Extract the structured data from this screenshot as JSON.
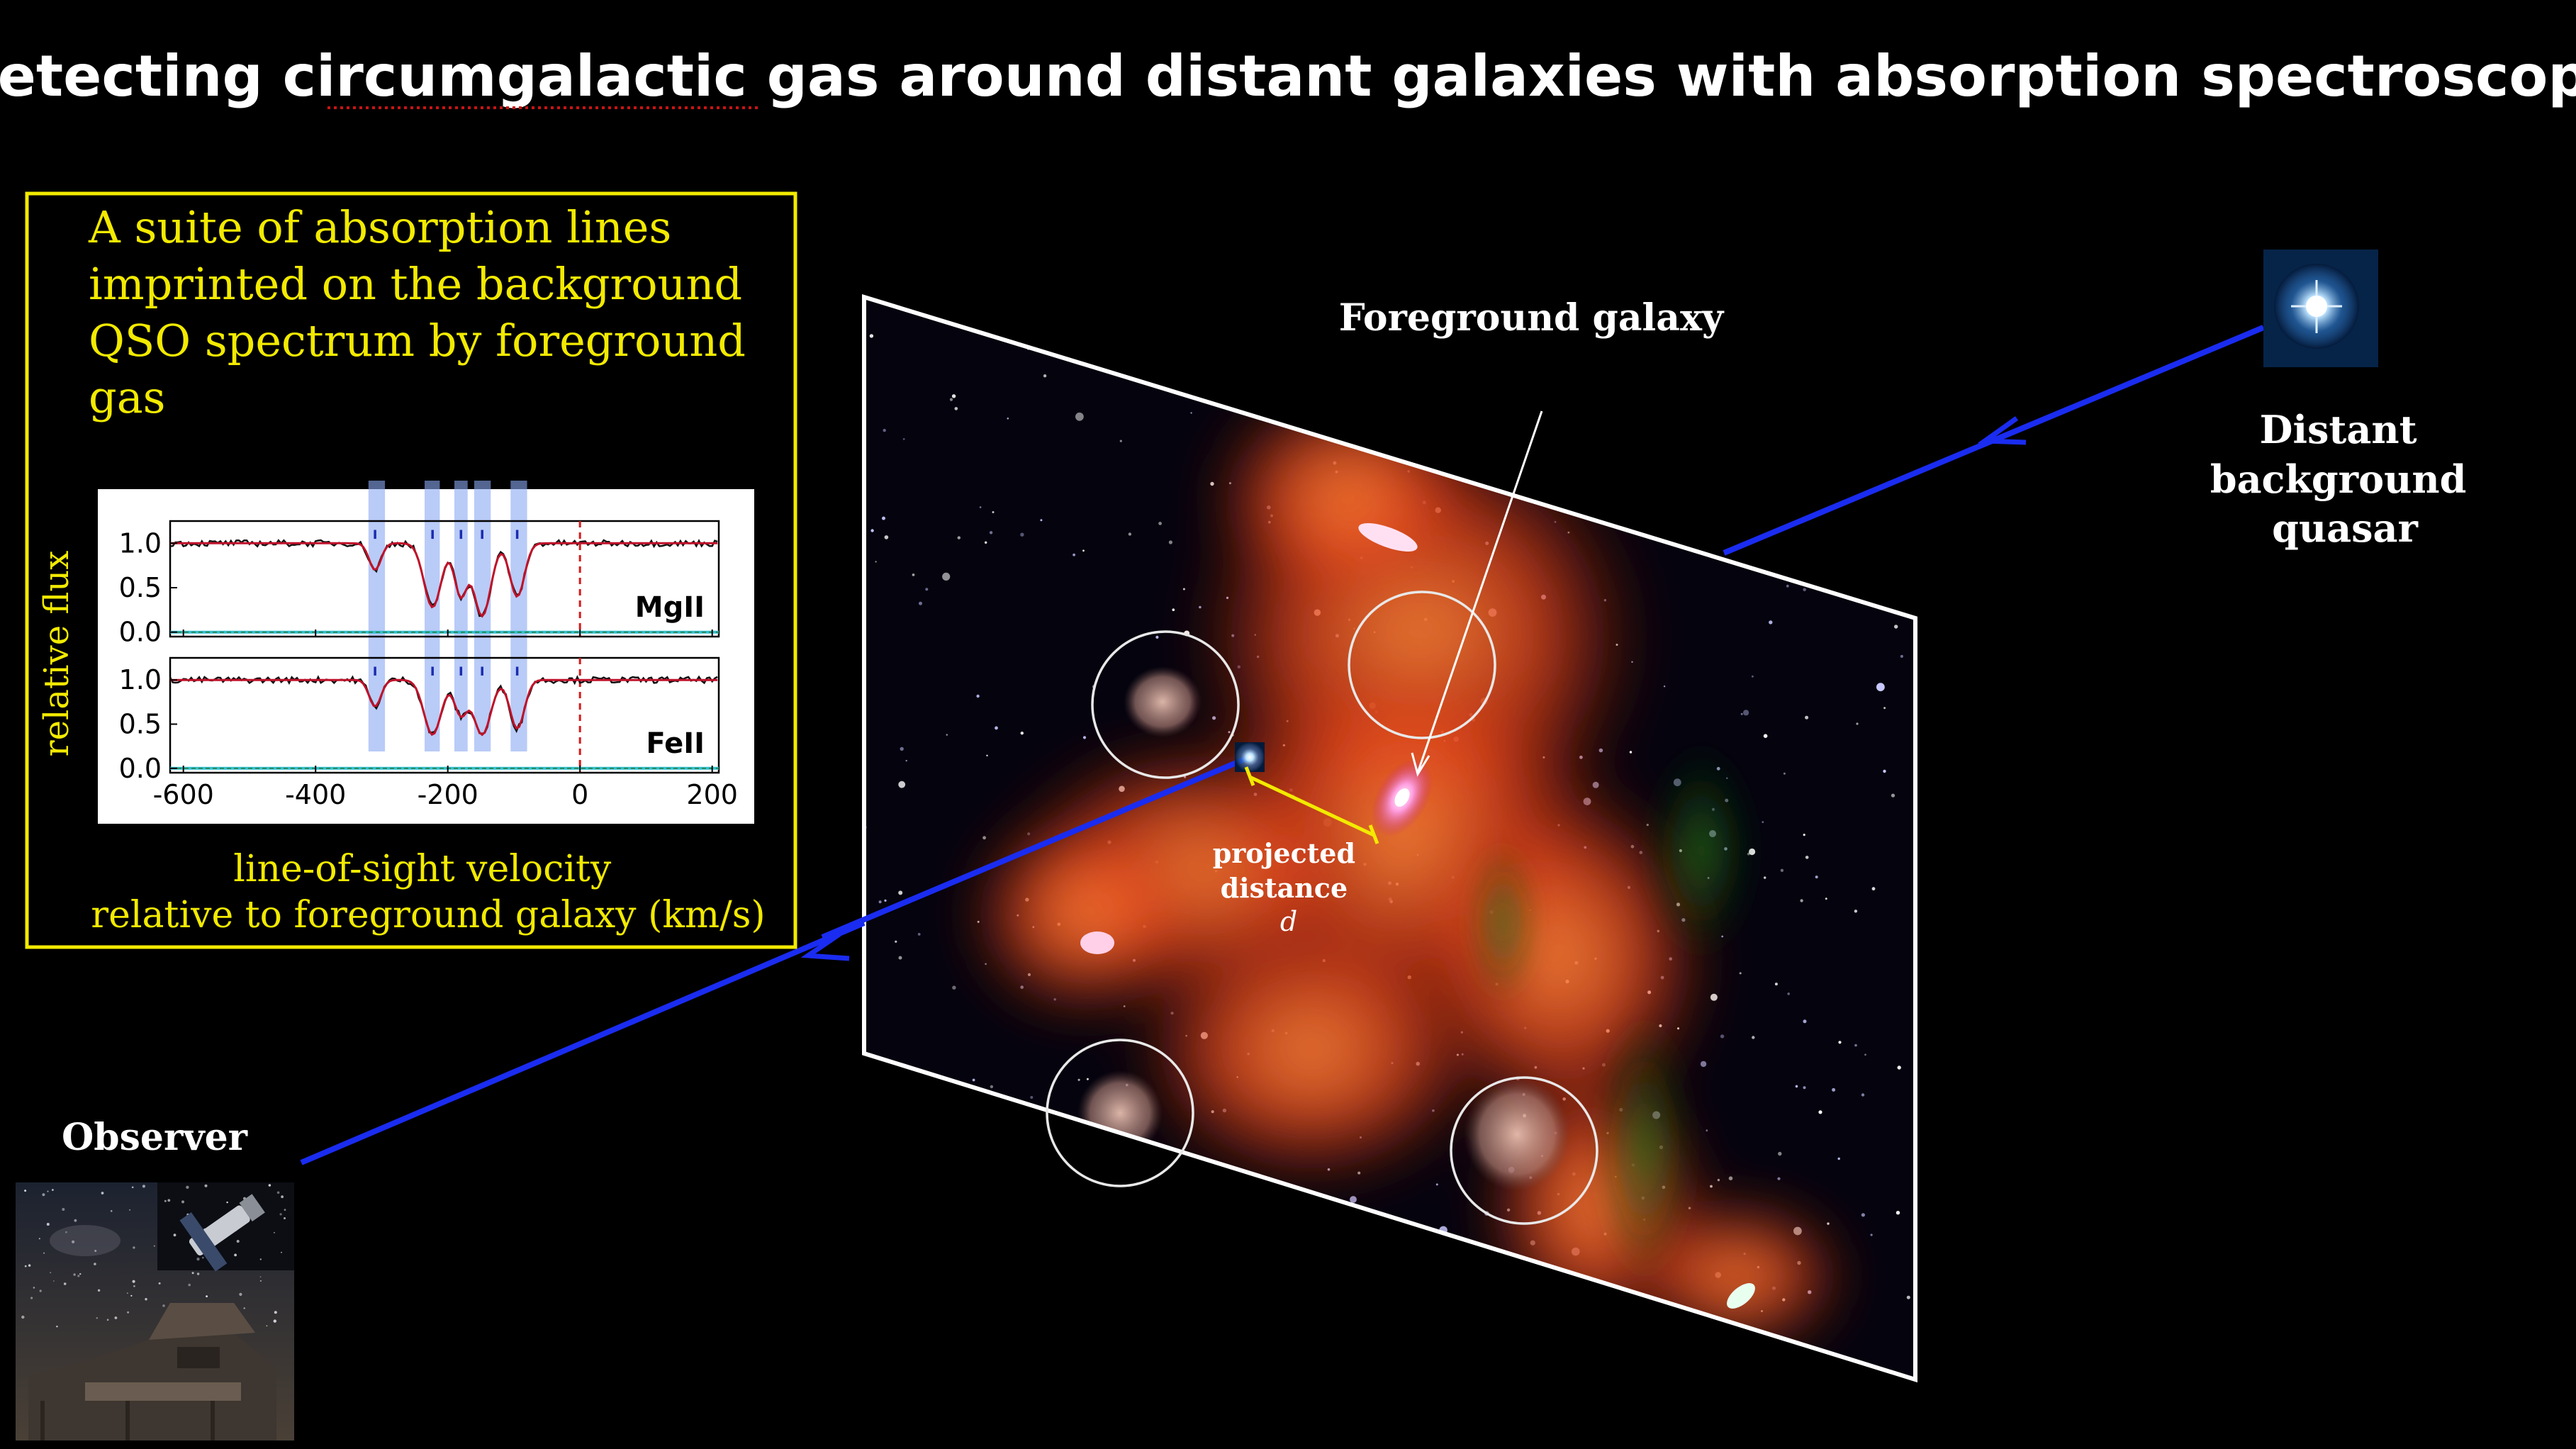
{
  "title_prefix": "Detecting ",
  "title_word": "circumgalactic",
  "title_suffix": " gas around distant galaxies with absorption spectroscopy",
  "inset": {
    "caption_lines": [
      "A suite of absorption lines",
      "imprinted on the background",
      "QSO spectrum by foreground",
      "gas"
    ],
    "ylabel": "relative flux",
    "xlabel_lines": [
      "line-of-sight velocity",
      "relative to foreground galaxy (km/s)"
    ],
    "border_color": "#f2ea00"
  },
  "labels": {
    "foreground_galaxy": "Foreground galaxy",
    "quasar": [
      "Distant",
      "background",
      "quasar"
    ],
    "observer": "Observer",
    "projected": [
      "projected",
      "distance",
      "d"
    ]
  },
  "colors": {
    "sightline": "#1a2cf0",
    "inset_text": "#f2ea00",
    "gas": "#ff6a1a"
  },
  "chart_data": {
    "type": "line",
    "xlim": [
      -620,
      210
    ],
    "x_ticks": [
      -600,
      -400,
      -200,
      0,
      200
    ],
    "x_tick_labels": [
      "-600",
      "-400",
      "-200",
      "0",
      "200"
    ],
    "y_ticks": [
      0.0,
      0.5,
      1.0
    ],
    "y_tick_labels": [
      "0.0",
      "0.5",
      "1.0"
    ],
    "ylim": [
      -0.05,
      1.25
    ],
    "absorption_bands": [
      [
        -320,
        -295
      ],
      [
        -235,
        -212
      ],
      [
        -190,
        -170
      ],
      [
        -160,
        -135
      ],
      [
        -105,
        -80
      ]
    ],
    "panels": [
      {
        "ion": "MgII",
        "components": [
          {
            "v": -310,
            "depth": 0.3,
            "width": 9
          },
          {
            "v": -223,
            "depth": 0.72,
            "width": 13
          },
          {
            "v": -180,
            "depth": 0.6,
            "width": 10
          },
          {
            "v": -148,
            "depth": 0.82,
            "width": 13
          },
          {
            "v": -95,
            "depth": 0.6,
            "width": 11
          }
        ]
      },
      {
        "ion": "FeII",
        "components": [
          {
            "v": -310,
            "depth": 0.3,
            "width": 9
          },
          {
            "v": -223,
            "depth": 0.62,
            "width": 13
          },
          {
            "v": -180,
            "depth": 0.4,
            "width": 10
          },
          {
            "v": -148,
            "depth": 0.62,
            "width": 13
          },
          {
            "v": -95,
            "depth": 0.55,
            "width": 11
          }
        ]
      }
    ]
  }
}
